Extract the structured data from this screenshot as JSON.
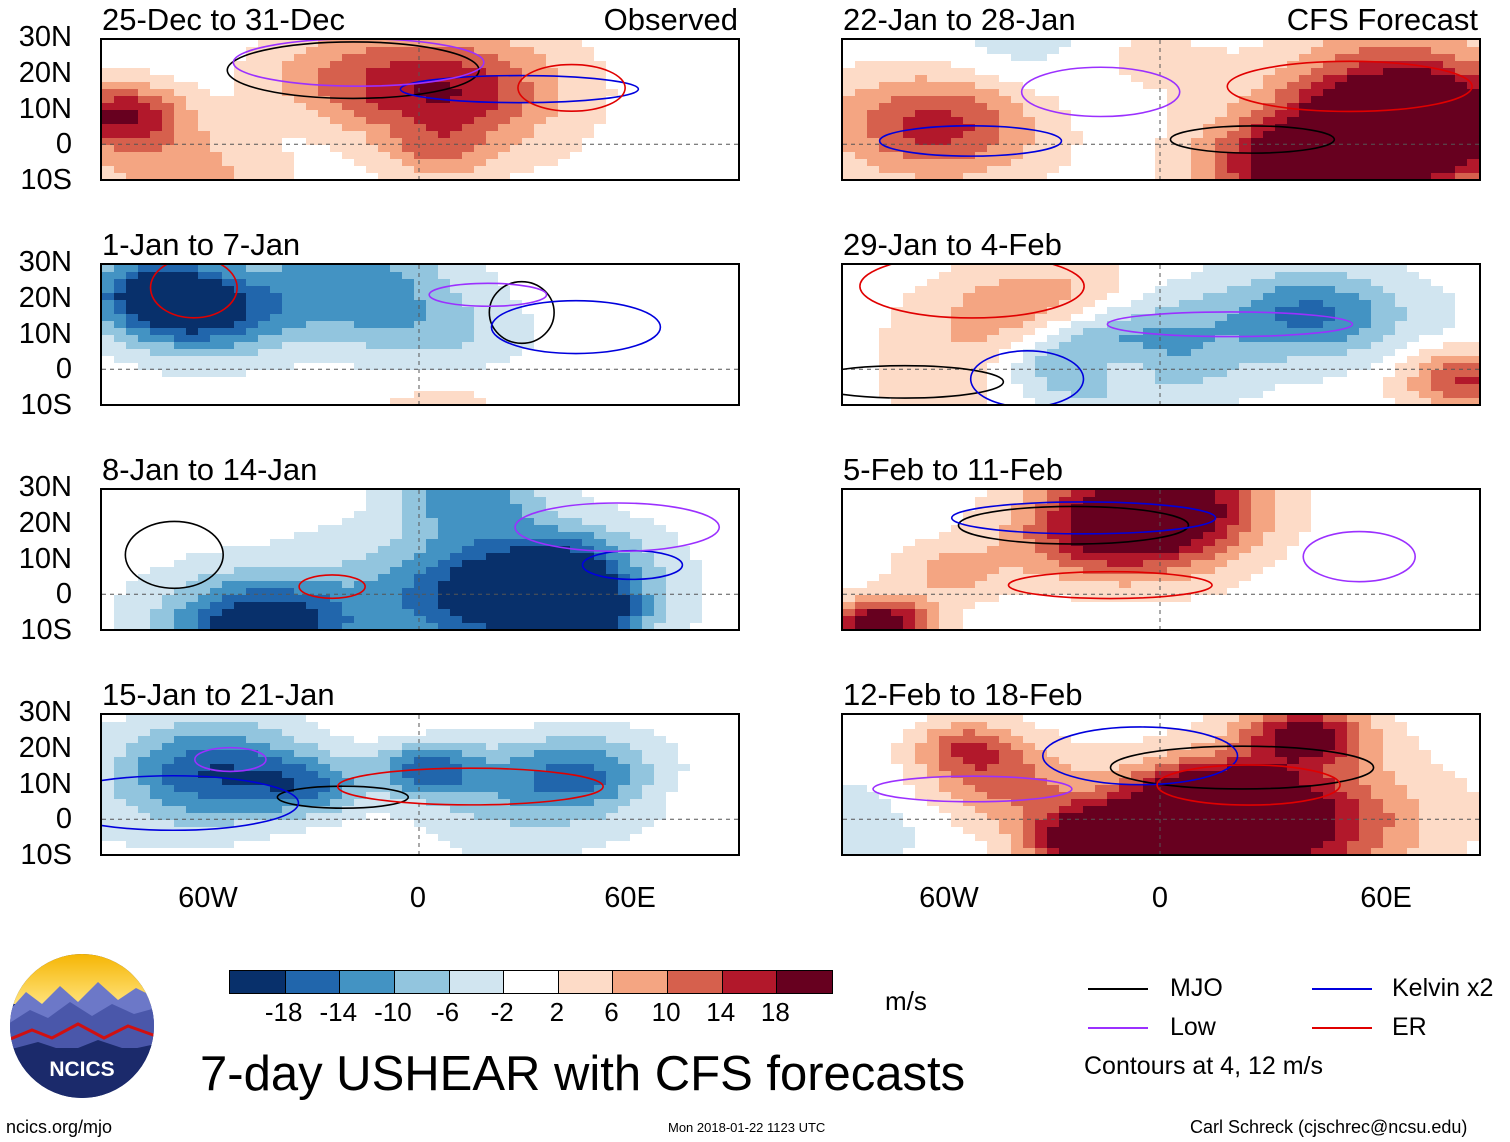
{
  "columns": {
    "left": {
      "title": "Observed"
    },
    "right": {
      "title": "CFS Forecast"
    }
  },
  "panels": {
    "left": [
      {
        "period": "25-Dec to 31-Dec"
      },
      {
        "period": "1-Jan to 7-Jan"
      },
      {
        "period": "8-Jan to 14-Jan"
      },
      {
        "period": "15-Jan to 21-Jan"
      }
    ],
    "right": [
      {
        "period": "22-Jan to 28-Jan"
      },
      {
        "period": "29-Jan to 4-Feb"
      },
      {
        "period": "5-Feb to 11-Feb"
      },
      {
        "period": "12-Feb to 18-Feb"
      }
    ]
  },
  "lat_labels": [
    "30N",
    "20N",
    "10N",
    "0",
    "10S"
  ],
  "lon_labels": [
    "60W",
    "0",
    "60E"
  ],
  "colorbar": {
    "unit": "m/s",
    "tick_labels": [
      "-18",
      "-14",
      "-10",
      "-6",
      "-2",
      "2",
      "6",
      "10",
      "14",
      "18"
    ],
    "colors": [
      "#08306b",
      "#2166ac",
      "#4393c3",
      "#92c5de",
      "#d1e5f0",
      "#ffffff",
      "#fddbc7",
      "#f4a582",
      "#d6604d",
      "#b2182b",
      "#67001f"
    ]
  },
  "legend": {
    "items": [
      {
        "label": "MJO",
        "color": "#000000"
      },
      {
        "label": "Kelvin x2",
        "color": "#0000dd"
      },
      {
        "label": "Low",
        "color": "#9b30ff"
      },
      {
        "label": "ER",
        "color": "#e00000"
      }
    ],
    "note": "Contours at 4, 12 m/s"
  },
  "logo": {
    "text": "NCICS"
  },
  "title": "7-day USHEAR with CFS forecasts",
  "footer": {
    "website": "ncics.org/mjo",
    "timestamp": "Mon 2018-01-22 1123 UTC",
    "author": "Carl Schreck (cjschrec@ncsu.edu)"
  }
}
